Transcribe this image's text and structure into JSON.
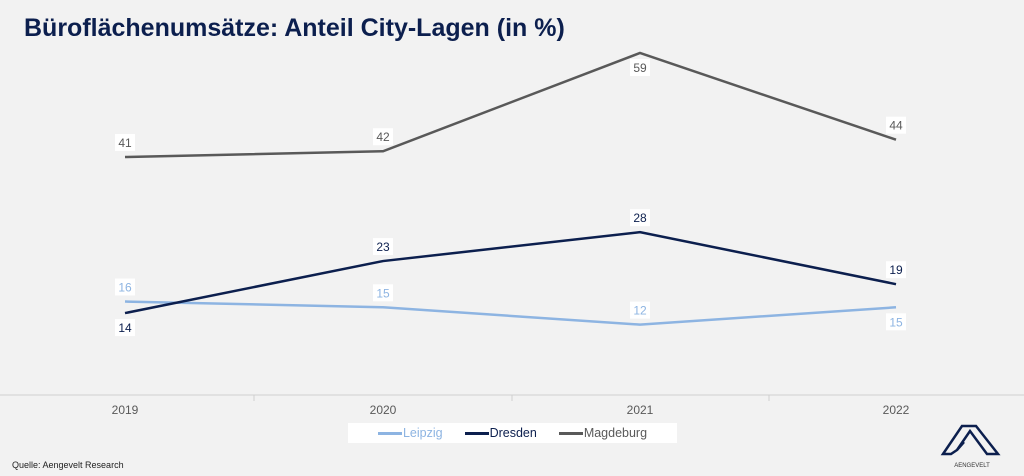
{
  "title": "Büroflächenumsätze: Anteil City-Lagen (in %)",
  "source": "Quelle: Aengevelt Research",
  "logo_text": "AENGEVELT",
  "chart_data": {
    "type": "line",
    "title": "Büroflächenumsätze: Anteil City-Lagen (in %)",
    "categories": [
      "2019",
      "2020",
      "2021",
      "2022"
    ],
    "ylim": [
      0,
      60
    ],
    "grid": false,
    "legend_placement": "bottom",
    "series": [
      {
        "name": "Leipzig",
        "color": "#8db4e2",
        "values": [
          16,
          15,
          12,
          15
        ],
        "label_pos": [
          "above",
          "above",
          "above",
          "below"
        ]
      },
      {
        "name": "Dresden",
        "color": "#0c1f4e",
        "values": [
          14,
          23,
          28,
          19
        ],
        "label_pos": [
          "below",
          "above",
          "above",
          "above"
        ]
      },
      {
        "name": "Magdeburg",
        "color": "#595959",
        "values": [
          41,
          42,
          59,
          44
        ],
        "label_pos": [
          "above",
          "above",
          "below",
          "above"
        ]
      }
    ]
  }
}
